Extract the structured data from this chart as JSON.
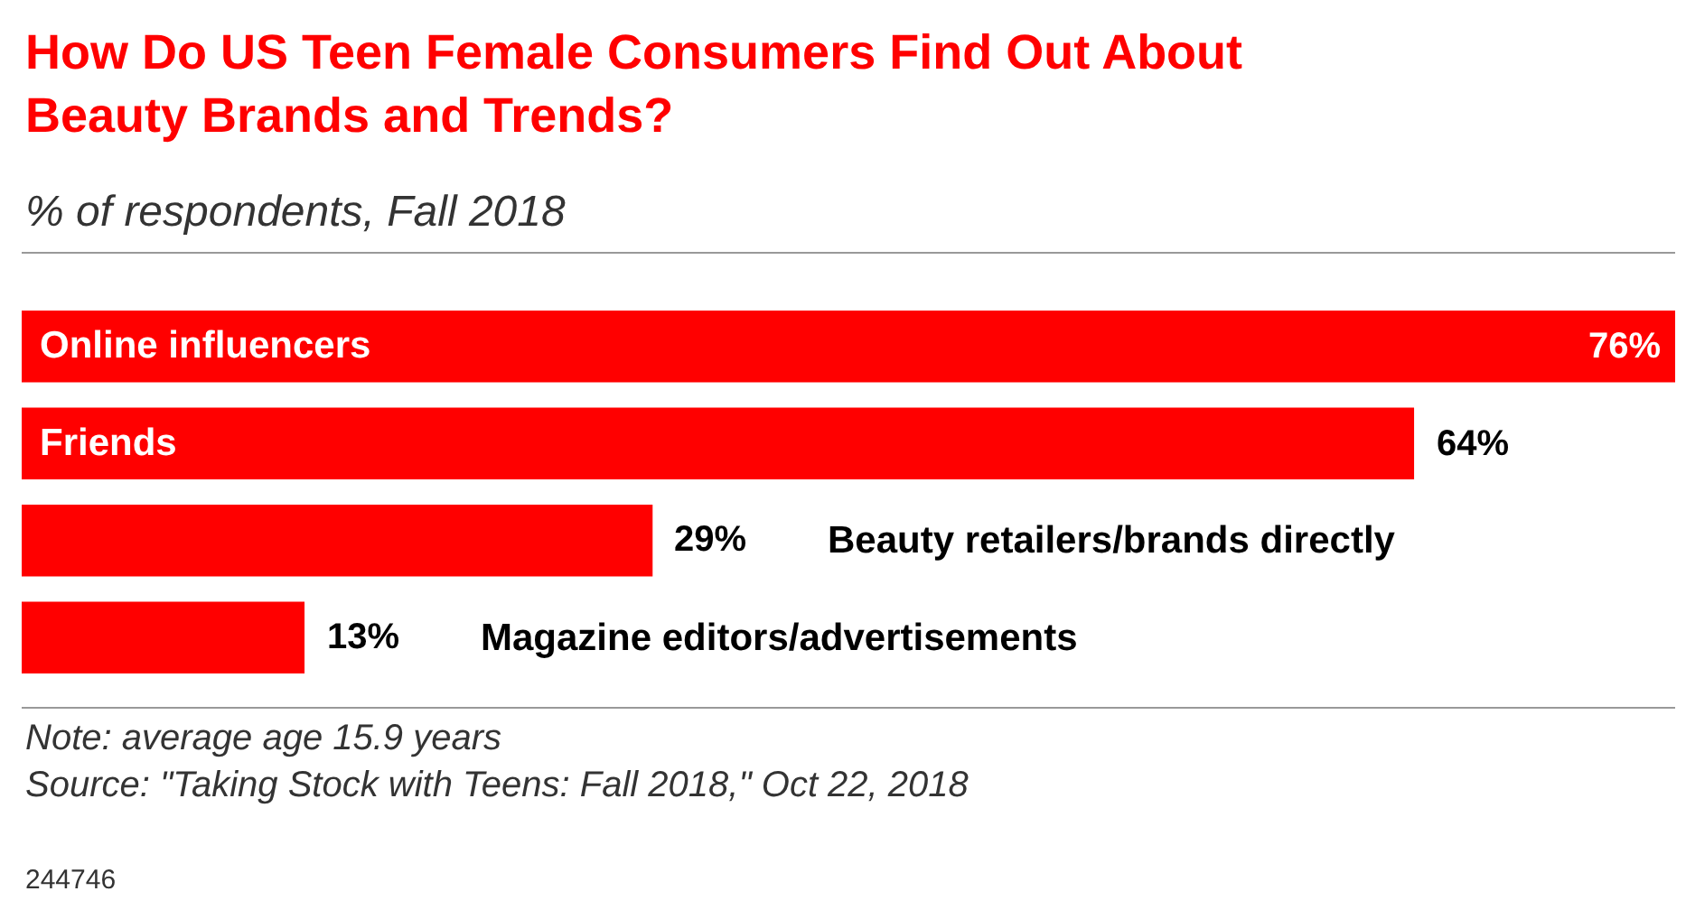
{
  "chart_data": {
    "type": "bar",
    "orientation": "horizontal",
    "title": "How Do US Teen Female Consumers Find Out About\nBeauty Brands and Trends?",
    "subtitle": "% of respondents, Fall 2018",
    "categories": [
      "Online influencers",
      "Friends",
      "Beauty retailers/brands directly",
      "Magazine editors/advertisements"
    ],
    "values": [
      76,
      64,
      29,
      13
    ],
    "color": "#ff0000",
    "value_labels": [
      "76%",
      "64%",
      "29%",
      "13%"
    ],
    "annotations": [
      "Note: average age 15.9 years",
      "Source: \"Taking Stock with Teens: Fall 2018,\" Oct 22, 2018",
      "244746"
    ],
    "legend": false
  }
}
